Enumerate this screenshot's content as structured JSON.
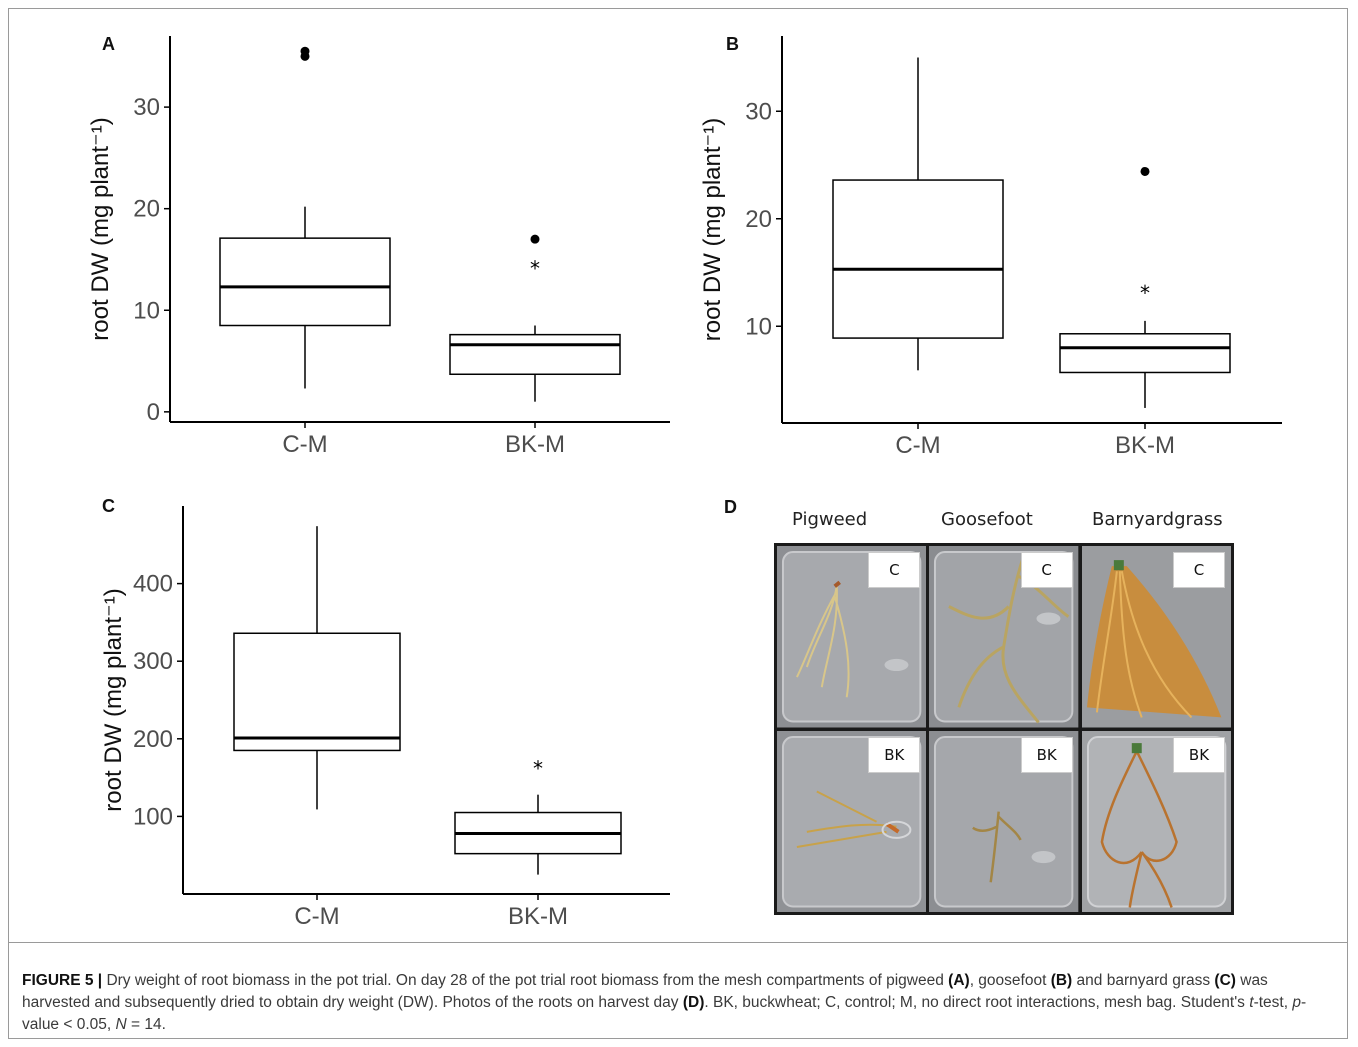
{
  "panels": {
    "A": {
      "label": "A"
    },
    "B": {
      "label": "B"
    },
    "C": {
      "label": "C"
    },
    "D": {
      "label": "D"
    }
  },
  "photo": {
    "label": "D",
    "columns": [
      "Pigweed",
      "Goosefoot",
      "Barnyardgrass"
    ],
    "row_tags": [
      "C",
      "BK"
    ]
  },
  "caption": {
    "figure": "FIGURE 5 |",
    "t1": " Dry weight of root biomass in the pot trial. On day 28 of the pot trial root biomass from the mesh compartments of pigweed ",
    "a": "(A)",
    "t2": ", goosefoot ",
    "b": "(B)",
    "t3": " and barnyard grass ",
    "c": "(C)",
    "t4": " was harvested and subsequently dried to obtain dry weight (DW). Photos of the roots on harvest day ",
    "d": "(D)",
    "t5": ". BK, buckwheat; C, control; M, no direct root interactions, mesh bag. Student's ",
    "ttest": "t",
    "t6": "-test, ",
    "p": "p",
    "t7": "-value < 0.05, ",
    "n": "N",
    "t8": " = 14."
  },
  "colors": {
    "box": "#000000",
    "text": "#4d4d4d",
    "caption_bold": "#111111"
  },
  "chart_data": [
    {
      "id": "A",
      "type": "box",
      "ylabel": "root DW (mg plant⁻¹)",
      "ylim": [
        -1,
        37
      ],
      "yticks": [
        0,
        10,
        20,
        30
      ],
      "categories": [
        "C-M",
        "BK-M"
      ],
      "boxes": [
        {
          "category": "C-M",
          "whisker_low": 2.3,
          "q1": 8.5,
          "median": 12.3,
          "q3": 17.1,
          "whisker_high": 20.2,
          "outliers_dot": [
            35.0,
            35.5
          ],
          "outliers_star": []
        },
        {
          "category": "BK-M",
          "whisker_low": 1.0,
          "q1": 3.7,
          "median": 6.6,
          "q3": 7.6,
          "whisker_high": 8.5,
          "outliers_dot": [
            17.0
          ],
          "outliers_star": [
            14.3
          ]
        }
      ]
    },
    {
      "id": "B",
      "type": "box",
      "ylabel": "root DW (mg plant⁻¹)",
      "ylim": [
        1,
        37
      ],
      "yticks": [
        10,
        20,
        30
      ],
      "categories": [
        "C-M",
        "BK-M"
      ],
      "boxes": [
        {
          "category": "C-M",
          "whisker_low": 5.9,
          "q1": 8.9,
          "median": 15.3,
          "q3": 23.6,
          "whisker_high": 35.0,
          "outliers_dot": [],
          "outliers_star": []
        },
        {
          "category": "BK-M",
          "whisker_low": 2.4,
          "q1": 5.7,
          "median": 8.0,
          "q3": 9.3,
          "whisker_high": 10.5,
          "outliers_dot": [
            24.4
          ],
          "outliers_star": [
            13.3
          ]
        }
      ]
    },
    {
      "id": "C",
      "type": "box",
      "ylabel": "root DW (mg plant⁻¹)",
      "ylim": [
        0,
        500
      ],
      "yticks": [
        100,
        200,
        300,
        400
      ],
      "categories": [
        "C-M",
        "BK-M"
      ],
      "boxes": [
        {
          "category": "C-M",
          "whisker_low": 109,
          "q1": 185,
          "median": 201,
          "q3": 336,
          "whisker_high": 474,
          "outliers_dot": [],
          "outliers_star": []
        },
        {
          "category": "BK-M",
          "whisker_low": 25,
          "q1": 52,
          "median": 78,
          "q3": 105,
          "whisker_high": 128,
          "outliers_dot": [],
          "outliers_star": [
            164
          ]
        }
      ]
    }
  ]
}
